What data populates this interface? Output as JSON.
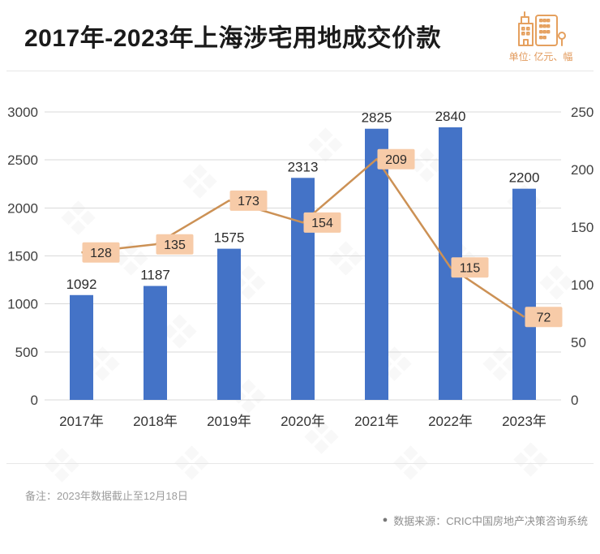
{
  "header": {
    "title": "2017年-2023年上海涉宅用地成交价款",
    "unit_label": "单位: 亿元、幅"
  },
  "chart_data": {
    "type": "bar+line combo",
    "categories": [
      "2017年",
      "2018年",
      "2019年",
      "2020年",
      "2021年",
      "2022年",
      "2023年"
    ],
    "series": [
      {
        "type": "bar",
        "axis": "left",
        "values": [
          1092,
          1187,
          1575,
          2313,
          2825,
          2840,
          2200
        ],
        "color": "#4473C7"
      },
      {
        "type": "line",
        "axis": "right",
        "values": [
          128,
          135,
          173,
          154,
          209,
          115,
          72
        ],
        "color": "#CC9155",
        "label_bg": "#F7CBA8"
      }
    ],
    "left_axis": {
      "min": 0,
      "max": 3000,
      "step": 500,
      "tick_labels": [
        "3000",
        "2500",
        "2000",
        "1500",
        "1000",
        "500",
        "0"
      ]
    },
    "right_axis": {
      "min": 0,
      "max": 250,
      "step": 50,
      "tick_labels": [
        "250",
        "200",
        "150",
        "100",
        "50",
        "0"
      ]
    },
    "grid": true,
    "legend": "none",
    "grid_color": "#D9D9D9"
  },
  "footer": {
    "note": "备注：2023年数据截止至12月18日",
    "source_bullet": "●",
    "source": "数据来源：CRIC中国房地产决策咨询系统"
  },
  "colors": {
    "bar": "#4473C7",
    "line": "#CC9155",
    "line_label_bg": "#F7CBA8",
    "accent_orange": "#E5A05E",
    "grid": "#D9D9D9",
    "title_text": "#1A1A1A",
    "muted_text": "#9D9D9D"
  }
}
